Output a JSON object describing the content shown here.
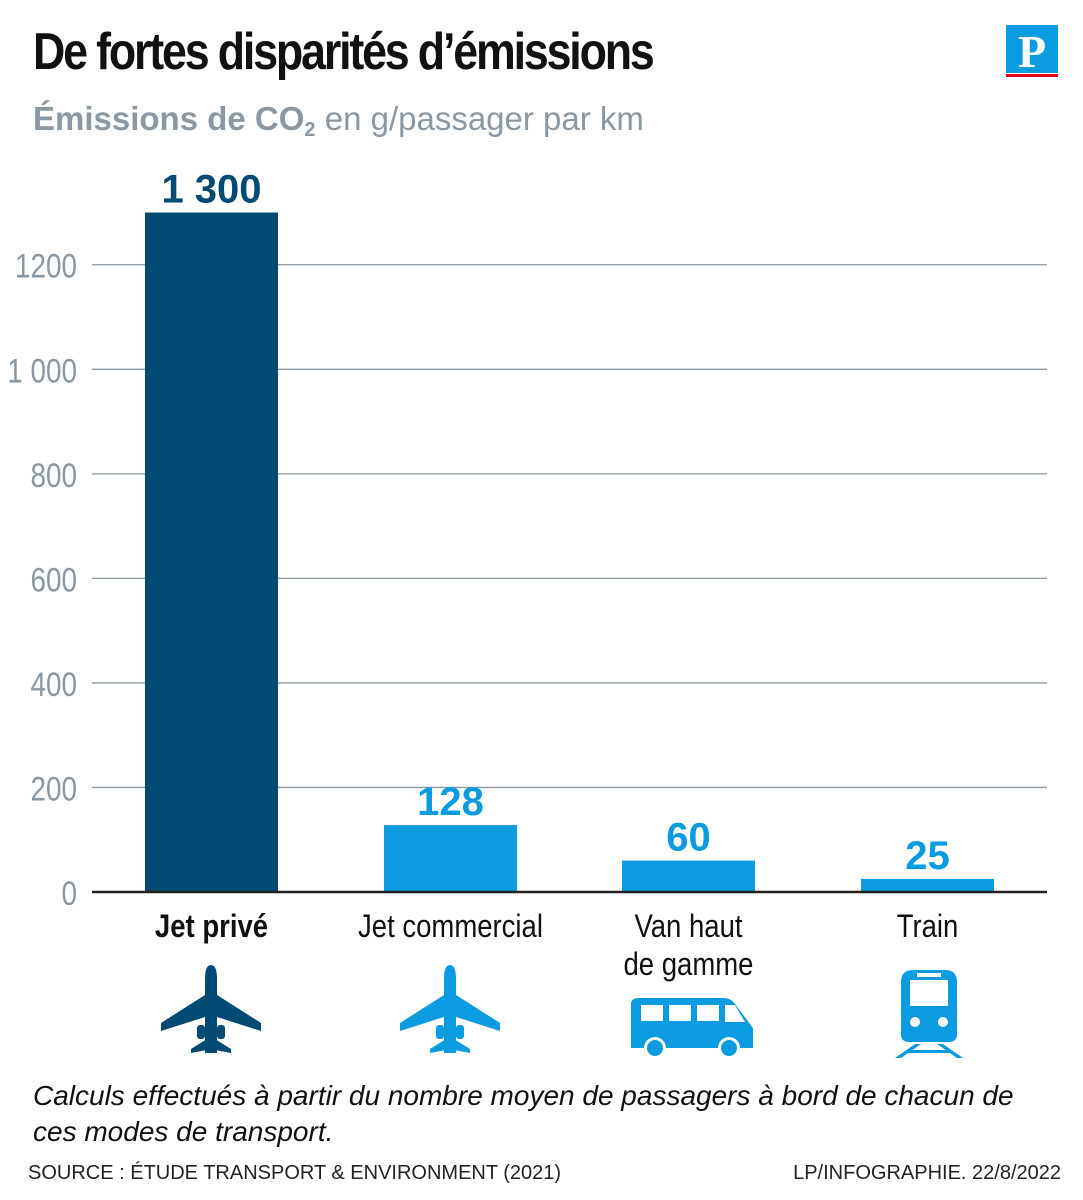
{
  "header": {
    "title": "De fortes disparités d’émissions",
    "subtitle_bold": "Émissions de CO",
    "subtitle_sub": "2",
    "subtitle_rest": " en g/passager par km",
    "logo_letter": "P"
  },
  "chart_data": {
    "type": "bar",
    "categories": [
      "Jet privé",
      "Jet commercial",
      "Van haut de gamme",
      "Train"
    ],
    "category_lines": [
      [
        "Jet privé"
      ],
      [
        "Jet commercial"
      ],
      [
        "Van haut",
        "de gamme"
      ],
      [
        "Train"
      ]
    ],
    "values": [
      1300,
      128,
      60,
      25
    ],
    "value_labels": [
      "1 300",
      "128",
      "60",
      "25"
    ],
    "ylim": [
      0,
      1300
    ],
    "yticks": [
      0,
      200,
      400,
      600,
      800,
      1000,
      1200
    ],
    "ytick_labels": [
      "0",
      "200",
      "400",
      "600",
      "800",
      "1 000",
      "1200"
    ],
    "grid": true,
    "icons": [
      "private-jet-icon",
      "commercial-jet-icon",
      "van-icon",
      "train-icon"
    ],
    "bar_colors": [
      "#004a73",
      "#0b9be0",
      "#0b9be0",
      "#0b9be0"
    ],
    "highlight_category": "Jet privé"
  },
  "footer": {
    "note": "Calculs effectués à partir du nombre moyen de passagers à bord de chacun de ces modes de transport.",
    "source": "SOURCE : ÉTUDE TRANSPORT & ENVIRONMENT (2021)",
    "credit": "LP/INFOGRAPHIE.  22/8/2022"
  },
  "colors": {
    "dark_blue": "#004a73",
    "light_blue": "#0b9be0",
    "axis_gray": "#8a98a3",
    "grid": "#8a98a3",
    "logo_red": "#e2001a"
  }
}
